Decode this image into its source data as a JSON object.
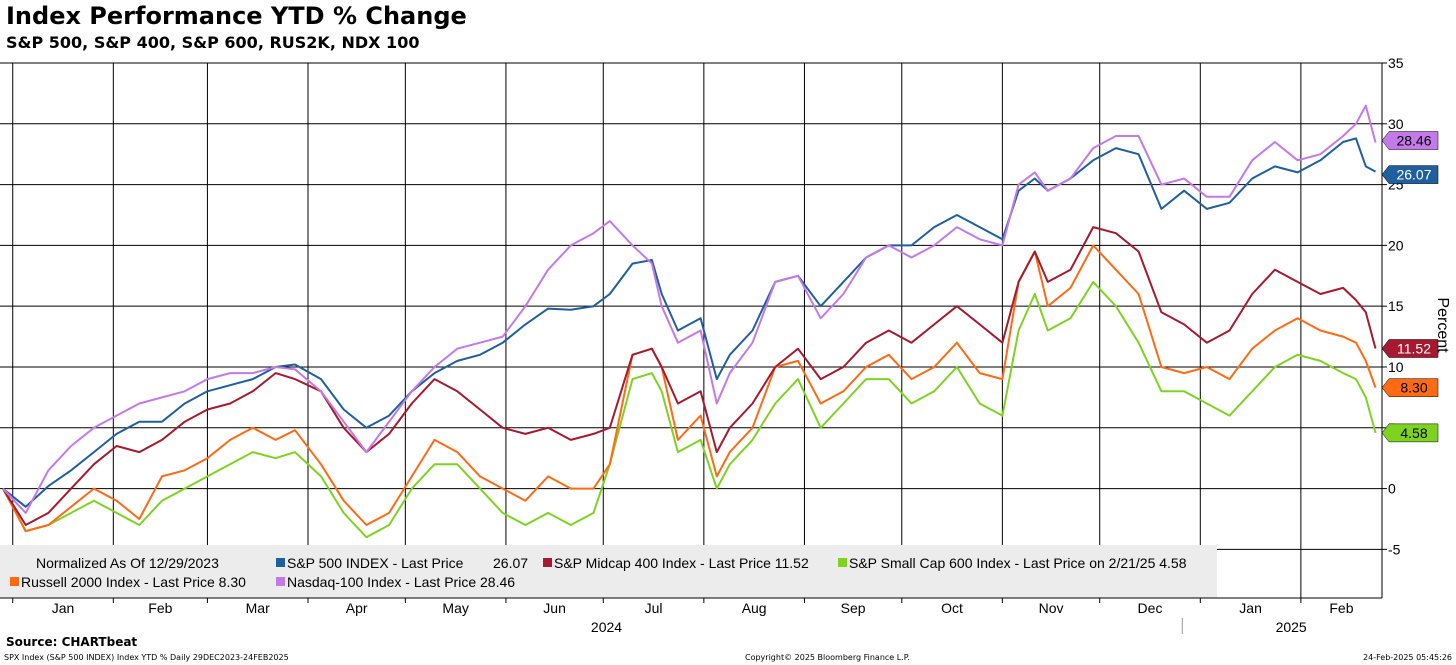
{
  "header": {
    "title": "Index Performance YTD % Change",
    "subtitle": "S&P 500, S&P 400, S&P 600, RUS2K, NDX 100"
  },
  "footer": {
    "source": "Source: CHARTbeat",
    "left": "SPX Index (S&P 500 INDEX) Index YTD %  Daily 29DEC2023-24FEB2025",
    "center": "Copyright© 2025 Bloomberg Finance L.P.",
    "right": "24-Feb-2025 05:45:26"
  },
  "legend": {
    "note": "Normalized As Of 12/29/2023",
    "items": [
      {
        "label": "S&P 500 INDEX - Last Price",
        "value": "26.07",
        "color": "#1f5f9e"
      },
      {
        "label": "S&P Midcap 400 Index - Last Price 11.52",
        "color": "#a6192e"
      },
      {
        "label": "S&P Small Cap 600 Index - Last Price on 2/21/25 4.58",
        "color": "#7ed321"
      },
      {
        "label": "Russell 2000 Index - Last Price 8.30",
        "color": "#ff6a13"
      },
      {
        "label": "Nasdaq-100 Index - Last Price 28.46",
        "color": "#c479e8"
      }
    ]
  },
  "chart_data": {
    "type": "line",
    "x_unit": "date",
    "xlabel": "",
    "ylabel": "Percent",
    "ylim": [
      -9,
      35
    ],
    "yticks": [
      -5,
      0,
      5,
      10,
      15,
      20,
      25,
      30,
      35
    ],
    "ytick_labels": [
      "-5",
      "0",
      "5",
      "10",
      "15",
      "20",
      "25",
      "30",
      "35"
    ],
    "month_ticks": [
      "Jan",
      "Feb",
      "Mar",
      "Apr",
      "May",
      "Jun",
      "Jul",
      "Aug",
      "Sep",
      "Oct",
      "Nov",
      "Dec",
      "Jan",
      "Feb"
    ],
    "year_labels": [
      "2024",
      "2025"
    ],
    "grid": true,
    "legend_position": "bottom-left",
    "x": [
      "2023-12-29",
      "2024-01-05",
      "2024-01-12",
      "2024-01-19",
      "2024-01-26",
      "2024-02-02",
      "2024-02-09",
      "2024-02-16",
      "2024-02-23",
      "2024-03-01",
      "2024-03-08",
      "2024-03-15",
      "2024-03-22",
      "2024-03-28",
      "2024-04-05",
      "2024-04-12",
      "2024-04-19",
      "2024-04-26",
      "2024-05-03",
      "2024-05-10",
      "2024-05-17",
      "2024-05-24",
      "2024-05-31",
      "2024-06-07",
      "2024-06-14",
      "2024-06-21",
      "2024-06-28",
      "2024-07-03",
      "2024-07-10",
      "2024-07-16",
      "2024-07-19",
      "2024-07-24",
      "2024-07-31",
      "2024-08-05",
      "2024-08-09",
      "2024-08-16",
      "2024-08-23",
      "2024-08-30",
      "2024-09-06",
      "2024-09-13",
      "2024-09-20",
      "2024-09-27",
      "2024-10-04",
      "2024-10-11",
      "2024-10-18",
      "2024-10-25",
      "2024-11-01",
      "2024-11-06",
      "2024-11-11",
      "2024-11-15",
      "2024-11-22",
      "2024-11-29",
      "2024-12-06",
      "2024-12-13",
      "2024-12-20",
      "2024-12-27",
      "2025-01-03",
      "2025-01-10",
      "2025-01-17",
      "2025-01-24",
      "2025-01-31",
      "2025-02-07",
      "2025-02-14",
      "2025-02-18",
      "2025-02-21",
      "2025-02-24"
    ],
    "series": [
      {
        "name": "S&P 500 INDEX",
        "color": "#1f5f9e",
        "last": "26.07",
        "values": [
          0,
          -1.5,
          0.2,
          1.5,
          3,
          4.5,
          5.5,
          5.5,
          7,
          8,
          8.5,
          9,
          10,
          10.2,
          9,
          6.5,
          5,
          6,
          8,
          9.5,
          10.5,
          11,
          12,
          13.5,
          14.8,
          14.7,
          15,
          16,
          18.5,
          18.8,
          16,
          13,
          14,
          9,
          11,
          13,
          17,
          17.5,
          15,
          17,
          19,
          20,
          20,
          21.5,
          22.5,
          21.5,
          20.5,
          24.5,
          25.5,
          24.5,
          25.5,
          27,
          28,
          27.5,
          23,
          24.5,
          23,
          23.5,
          25.5,
          26.5,
          26,
          27,
          28.5,
          28.8,
          26.5,
          26.07
        ]
      },
      {
        "name": "S&P Midcap 400 Index",
        "color": "#a6192e",
        "last": "11.52",
        "values": [
          0,
          -3,
          -2,
          0,
          2,
          3.5,
          3,
          4,
          5.5,
          6.5,
          7,
          8,
          9.5,
          9,
          8,
          5,
          3,
          4.5,
          7,
          9,
          8,
          6.5,
          5,
          4.5,
          5,
          4,
          4.5,
          5,
          11,
          11.5,
          10,
          7,
          8,
          3,
          5,
          7,
          10,
          11.5,
          9,
          10,
          12,
          13,
          12,
          13.5,
          15,
          13.5,
          12,
          17,
          19.5,
          17,
          18,
          21.5,
          21,
          19.5,
          14.5,
          13.5,
          12,
          13,
          16,
          18,
          17,
          16,
          16.5,
          15.5,
          14.5,
          11.52
        ]
      },
      {
        "name": "S&P Small Cap 600 Index",
        "color": "#7ed321",
        "last": "4.58",
        "values": [
          0,
          -3.5,
          -3,
          -2,
          -1,
          -2,
          -3,
          -1,
          0,
          1,
          2,
          3,
          2.5,
          3,
          1,
          -2,
          -4,
          -3,
          0,
          2,
          2,
          0,
          -2,
          -3,
          -2,
          -3,
          -2,
          2,
          9,
          9.5,
          8,
          3,
          4,
          0,
          2,
          4,
          7,
          9,
          5,
          7,
          9,
          9,
          7,
          8,
          10,
          7,
          6,
          13,
          16,
          13,
          14,
          17,
          15,
          12,
          8,
          8,
          7,
          6,
          8,
          10,
          11,
          10.5,
          9.5,
          9,
          7.5,
          4.58
        ]
      },
      {
        "name": "Russell 2000 Index",
        "color": "#ff6a13",
        "last": "8.30",
        "values": [
          0,
          -3.5,
          -3,
          -1.5,
          0,
          -1,
          -2.5,
          1,
          1.5,
          2.5,
          4,
          5,
          4,
          4.8,
          2,
          -1,
          -3,
          -2,
          1,
          4,
          3,
          1,
          0,
          -1,
          1,
          0,
          0,
          2,
          11,
          11.5,
          10,
          4,
          6,
          1,
          3,
          5,
          10,
          10.5,
          7,
          8,
          10,
          11,
          9,
          10,
          12,
          9.5,
          9,
          17,
          19.5,
          15,
          16.5,
          20,
          18,
          16,
          10,
          9.5,
          10,
          9,
          11.5,
          13,
          14,
          13,
          12.5,
          12,
          10.5,
          8.3
        ]
      },
      {
        "name": "Nasdaq-100 Index",
        "color": "#c479e8",
        "last": "28.46",
        "values": [
          0,
          -2,
          1.5,
          3.5,
          5,
          6,
          7,
          7.5,
          8,
          9,
          9.5,
          9.5,
          10,
          9.8,
          8,
          5.5,
          3,
          5.5,
          8,
          10,
          11.5,
          12,
          12.5,
          15,
          18,
          20,
          21,
          22,
          20,
          18.5,
          15,
          12,
          13,
          7,
          9.5,
          12,
          17,
          17.5,
          14,
          16,
          19,
          20,
          19,
          20,
          21.5,
          20.5,
          20,
          25,
          26,
          24.5,
          25.5,
          28,
          29,
          29,
          25,
          25.5,
          24,
          24,
          27,
          28.5,
          27,
          27.5,
          29,
          30,
          31.5,
          28.46
        ]
      }
    ]
  }
}
